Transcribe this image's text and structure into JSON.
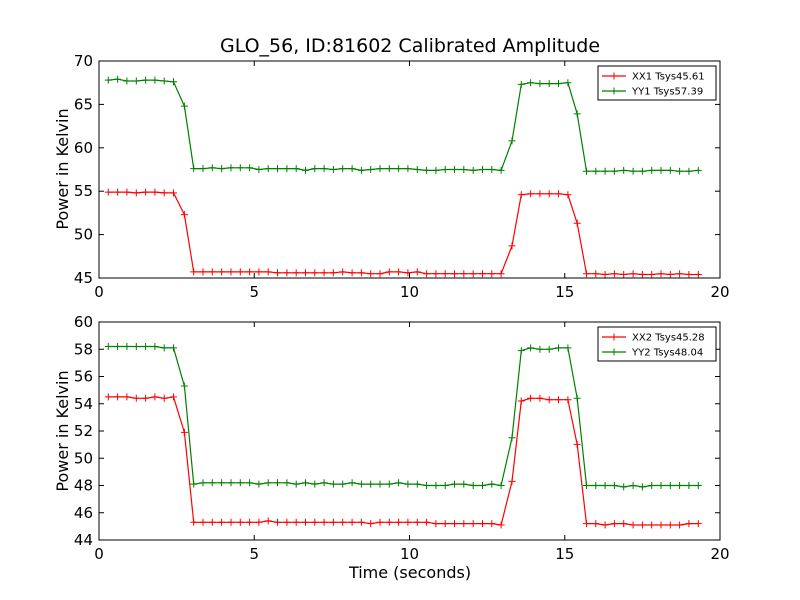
{
  "chart_data": [
    {
      "type": "line",
      "title": "GLO_56, ID:81602 Calibrated Amplitude",
      "xlabel": "",
      "ylabel": "Power in Kelvin",
      "xlim": [
        0,
        20
      ],
      "ylim": [
        45,
        70
      ],
      "xticks": [
        0,
        5,
        10,
        15,
        20
      ],
      "yticks": [
        45,
        50,
        55,
        60,
        65,
        70
      ],
      "legend_position": "top-right",
      "x": [
        0.3,
        0.6,
        0.9,
        1.2,
        1.5,
        1.8,
        2.1,
        2.4,
        2.75,
        3.05,
        3.35,
        3.65,
        3.95,
        4.25,
        4.55,
        4.85,
        5.15,
        5.45,
        5.75,
        6.05,
        6.35,
        6.65,
        6.95,
        7.25,
        7.55,
        7.85,
        8.15,
        8.45,
        8.75,
        9.05,
        9.35,
        9.65,
        9.95,
        10.25,
        10.55,
        10.85,
        11.15,
        11.45,
        11.75,
        12.05,
        12.35,
        12.65,
        12.95,
        13.3,
        13.6,
        13.9,
        14.2,
        14.5,
        14.8,
        15.1,
        15.4,
        15.7,
        16.0,
        16.3,
        16.6,
        16.9,
        17.2,
        17.5,
        17.8,
        18.1,
        18.4,
        18.7,
        19.0,
        19.3
      ],
      "series": [
        {
          "name": "XX1 Tsys45.61",
          "color": "#ff0000",
          "values": [
            54.9,
            54.9,
            54.9,
            54.8,
            54.9,
            54.9,
            54.8,
            54.8,
            52.3,
            45.7,
            45.7,
            45.7,
            45.7,
            45.7,
            45.7,
            45.7,
            45.7,
            45.7,
            45.6,
            45.6,
            45.6,
            45.6,
            45.6,
            45.6,
            45.6,
            45.7,
            45.6,
            45.6,
            45.5,
            45.5,
            45.7,
            45.7,
            45.6,
            45.7,
            45.5,
            45.5,
            45.5,
            45.5,
            45.5,
            45.5,
            45.5,
            45.5,
            45.5,
            48.7,
            54.6,
            54.7,
            54.7,
            54.7,
            54.7,
            54.6,
            51.3,
            45.5,
            45.5,
            45.4,
            45.5,
            45.4,
            45.5,
            45.4,
            45.4,
            45.5,
            45.4,
            45.5,
            45.4,
            45.4
          ]
        },
        {
          "name": "YY1 Tsys57.39",
          "color": "#008000",
          "values": [
            67.8,
            67.9,
            67.7,
            67.7,
            67.8,
            67.8,
            67.7,
            67.6,
            64.8,
            57.6,
            57.6,
            57.7,
            57.6,
            57.7,
            57.7,
            57.7,
            57.5,
            57.6,
            57.6,
            57.6,
            57.6,
            57.4,
            57.6,
            57.6,
            57.5,
            57.6,
            57.6,
            57.4,
            57.5,
            57.6,
            57.6,
            57.6,
            57.6,
            57.5,
            57.4,
            57.4,
            57.5,
            57.5,
            57.5,
            57.4,
            57.5,
            57.5,
            57.4,
            60.8,
            67.3,
            67.5,
            67.4,
            67.4,
            67.4,
            67.5,
            63.9,
            57.3,
            57.3,
            57.3,
            57.3,
            57.4,
            57.3,
            57.3,
            57.4,
            57.4,
            57.4,
            57.3,
            57.3,
            57.4
          ]
        }
      ]
    },
    {
      "type": "line",
      "title": "",
      "xlabel": "Time (seconds)",
      "ylabel": "Power in Kelvin",
      "xlim": [
        0,
        20
      ],
      "ylim": [
        44,
        60
      ],
      "xticks": [
        0,
        5,
        10,
        15,
        20
      ],
      "yticks": [
        44,
        46,
        48,
        50,
        52,
        54,
        56,
        58,
        60
      ],
      "legend_position": "top-right",
      "x": [
        0.3,
        0.6,
        0.9,
        1.2,
        1.5,
        1.8,
        2.1,
        2.4,
        2.75,
        3.05,
        3.35,
        3.65,
        3.95,
        4.25,
        4.55,
        4.85,
        5.15,
        5.45,
        5.75,
        6.05,
        6.35,
        6.65,
        6.95,
        7.25,
        7.55,
        7.85,
        8.15,
        8.45,
        8.75,
        9.05,
        9.35,
        9.65,
        9.95,
        10.25,
        10.55,
        10.85,
        11.15,
        11.45,
        11.75,
        12.05,
        12.35,
        12.65,
        12.95,
        13.3,
        13.6,
        13.9,
        14.2,
        14.5,
        14.8,
        15.1,
        15.4,
        15.7,
        16.0,
        16.3,
        16.6,
        16.9,
        17.2,
        17.5,
        17.8,
        18.1,
        18.4,
        18.7,
        19.0,
        19.3
      ],
      "series": [
        {
          "name": "XX2 Tsys45.28",
          "color": "#ff0000",
          "values": [
            54.5,
            54.5,
            54.5,
            54.4,
            54.4,
            54.5,
            54.4,
            54.5,
            51.9,
            45.3,
            45.3,
            45.3,
            45.3,
            45.3,
            45.3,
            45.3,
            45.3,
            45.4,
            45.3,
            45.3,
            45.3,
            45.3,
            45.3,
            45.3,
            45.3,
            45.3,
            45.3,
            45.3,
            45.2,
            45.3,
            45.3,
            45.3,
            45.3,
            45.3,
            45.3,
            45.2,
            45.2,
            45.2,
            45.2,
            45.2,
            45.2,
            45.2,
            45.1,
            48.3,
            54.2,
            54.4,
            54.4,
            54.3,
            54.3,
            54.3,
            51.0,
            45.2,
            45.2,
            45.1,
            45.2,
            45.2,
            45.1,
            45.1,
            45.1,
            45.1,
            45.1,
            45.1,
            45.2,
            45.2
          ]
        },
        {
          "name": "YY2 Tsys48.04",
          "color": "#008000",
          "values": [
            58.2,
            58.2,
            58.2,
            58.2,
            58.2,
            58.2,
            58.1,
            58.1,
            55.3,
            48.1,
            48.2,
            48.2,
            48.2,
            48.2,
            48.2,
            48.2,
            48.1,
            48.2,
            48.2,
            48.2,
            48.1,
            48.2,
            48.1,
            48.2,
            48.1,
            48.1,
            48.2,
            48.1,
            48.1,
            48.1,
            48.1,
            48.2,
            48.1,
            48.1,
            48.0,
            48.0,
            48.0,
            48.1,
            48.1,
            48.0,
            48.0,
            48.1,
            48.0,
            51.5,
            57.9,
            58.1,
            58.0,
            58.0,
            58.1,
            58.1,
            54.4,
            48.0,
            48.0,
            48.0,
            48.0,
            47.9,
            48.0,
            47.9,
            48.0,
            48.0,
            48.0,
            48.0,
            48.0,
            48.0
          ]
        }
      ]
    }
  ]
}
